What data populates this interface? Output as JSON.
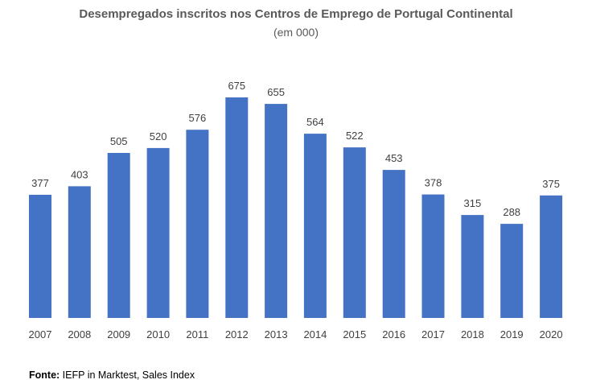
{
  "chart_data": {
    "type": "bar",
    "title": "Desempregados inscritos nos Centros de Emprego de Portugal Continental",
    "subtitle": "(em 000)",
    "categories": [
      "2007",
      "2008",
      "2009",
      "2010",
      "2011",
      "2012",
      "2013",
      "2014",
      "2015",
      "2016",
      "2017",
      "2018",
      "2019",
      "2020"
    ],
    "values": [
      377,
      403,
      505,
      520,
      576,
      675,
      655,
      564,
      522,
      453,
      378,
      315,
      288,
      375
    ],
    "data_labels": true,
    "ylim": [
      0,
      675
    ],
    "grid": false,
    "legend": "none",
    "bar_color": "#4472C4"
  },
  "source": {
    "label": "Fonte:",
    "text": " IEFP in Marktest, Sales Index"
  }
}
